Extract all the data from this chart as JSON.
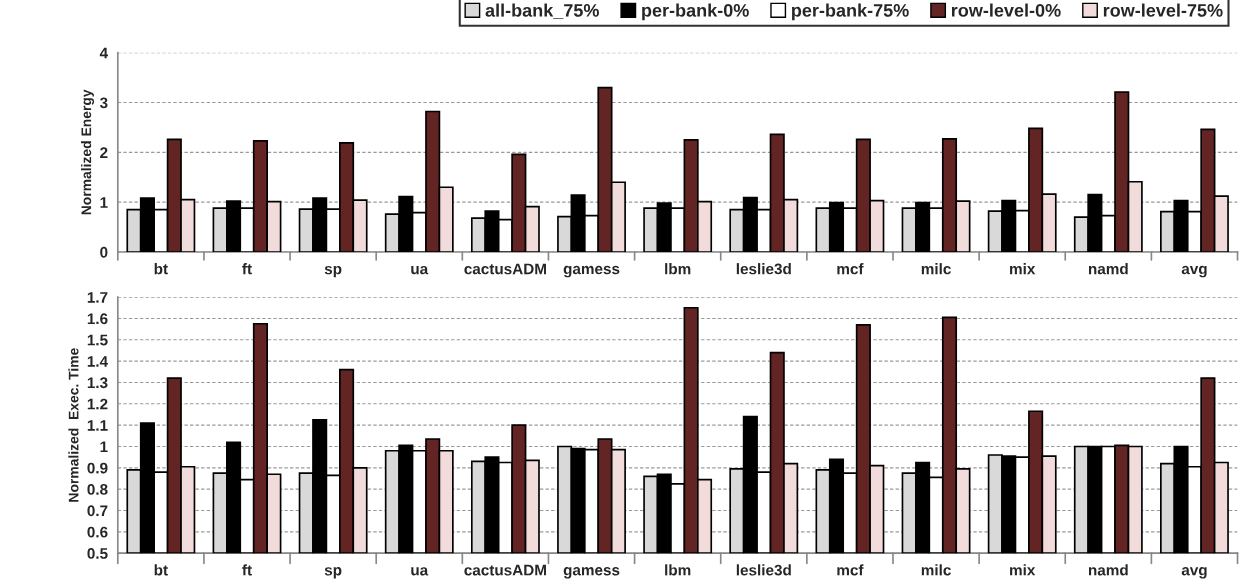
{
  "chart_data": [
    {
      "type": "bar",
      "ylabel": "Normalized Energy",
      "categories": [
        "bt",
        "ft",
        "sp",
        "ua",
        "cactusADM",
        "gamess",
        "lbm",
        "leslie3d",
        "mcf",
        "milc",
        "mix",
        "namd",
        "avg"
      ],
      "ylim": [
        0,
        4
      ],
      "yticks": [
        0,
        1,
        2,
        3,
        4
      ],
      "grid": "y",
      "legend": "top",
      "series": [
        {
          "name": "all-bank_75%",
          "color": "#d9d9d9",
          "values": [
            0.85,
            0.88,
            0.86,
            0.76,
            0.68,
            0.71,
            0.88,
            0.85,
            0.88,
            0.88,
            0.82,
            0.7,
            0.81
          ]
        },
        {
          "name": "per-bank-0%",
          "color": "#000000",
          "values": [
            1.08,
            1.02,
            1.08,
            1.11,
            0.82,
            1.14,
            0.98,
            1.09,
            0.99,
            0.99,
            1.03,
            1.15,
            1.03
          ]
        },
        {
          "name": "per-bank-75%",
          "color": "#ffffff",
          "values": [
            0.85,
            0.88,
            0.86,
            0.79,
            0.65,
            0.73,
            0.88,
            0.85,
            0.88,
            0.88,
            0.83,
            0.73,
            0.81
          ]
        },
        {
          "name": "row-level-0%",
          "color": "#632523",
          "values": [
            2.26,
            2.23,
            2.19,
            2.82,
            1.96,
            3.3,
            2.25,
            2.36,
            2.26,
            2.27,
            2.48,
            3.21,
            2.46
          ]
        },
        {
          "name": "row-level-75%",
          "color": "#f2dcdb",
          "values": [
            1.05,
            1.01,
            1.04,
            1.3,
            0.91,
            1.4,
            1.01,
            1.05,
            1.03,
            1.02,
            1.16,
            1.41,
            1.12
          ]
        }
      ]
    },
    {
      "type": "bar",
      "ylabel": "Normalized  Exec. Time",
      "categories": [
        "bt",
        "ft",
        "sp",
        "ua",
        "cactusADM",
        "gamess",
        "lbm",
        "leslie3d",
        "mcf",
        "milc",
        "mix",
        "namd",
        "avg"
      ],
      "ylim": [
        0.5,
        1.7
      ],
      "yticks": [
        0.5,
        0.6,
        0.7,
        0.8,
        0.9,
        1,
        1.1,
        1.2,
        1.3,
        1.4,
        1.5,
        1.6,
        1.7
      ],
      "grid": "y",
      "series": [
        {
          "color": "#d9d9d9",
          "values": [
            0.89,
            0.875,
            0.875,
            0.98,
            0.93,
            1.0,
            0.86,
            0.895,
            0.89,
            0.875,
            0.96,
            1.0,
            0.92
          ]
        },
        {
          "color": "#000000",
          "values": [
            1.11,
            1.02,
            1.125,
            1.005,
            0.95,
            0.99,
            0.87,
            1.14,
            0.94,
            0.925,
            0.955,
            1.0,
            1.0
          ]
        },
        {
          "color": "#ffffff",
          "values": [
            0.88,
            0.845,
            0.865,
            0.98,
            0.925,
            0.985,
            0.825,
            0.88,
            0.875,
            0.855,
            0.95,
            1.0,
            0.905
          ]
        },
        {
          "color": "#632523",
          "values": [
            1.32,
            1.575,
            1.36,
            1.035,
            1.1,
            1.035,
            1.65,
            1.44,
            1.57,
            1.605,
            1.165,
            1.005,
            1.32
          ]
        },
        {
          "color": "#f2dcdb",
          "values": [
            0.905,
            0.87,
            0.9,
            0.98,
            0.935,
            0.985,
            0.845,
            0.92,
            0.91,
            0.895,
            0.955,
            1.0,
            0.925
          ]
        }
      ]
    }
  ]
}
